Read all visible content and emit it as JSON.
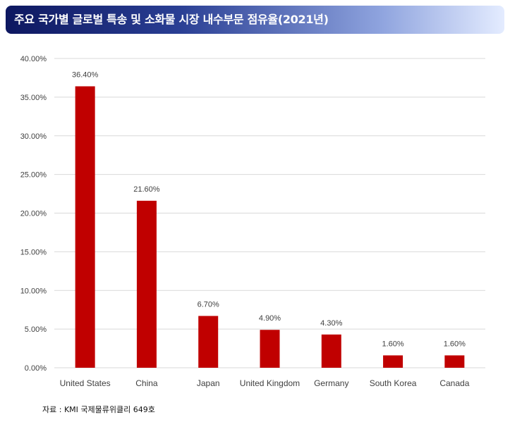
{
  "header": {
    "title": "주요 국가별 글로벌 특송 및 소화물 시장 내수부문 점유율(2021년)"
  },
  "footer": {
    "source": "자료 : KMI 국제물류위클리 649호"
  },
  "colors": {
    "bar": "#c00000",
    "grid": "#d9d9d9",
    "text": "#404040"
  },
  "chart_data": {
    "type": "bar",
    "categories": [
      "United States",
      "China",
      "Japan",
      "United Kingdom",
      "Germany",
      "South Korea",
      "Canada"
    ],
    "values": [
      36.4,
      21.6,
      6.7,
      4.9,
      4.3,
      1.6,
      1.6
    ],
    "data_labels": [
      "36.40%",
      "21.60%",
      "6.70%",
      "4.90%",
      "4.30%",
      "1.60%",
      "1.60%"
    ],
    "yticks": [
      0,
      5,
      10,
      15,
      20,
      25,
      30,
      35,
      40
    ],
    "ytick_labels": [
      "0.00%",
      "5.00%",
      "10.00%",
      "15.00%",
      "20.00%",
      "25.00%",
      "30.00%",
      "35.00%",
      "40.00%"
    ],
    "ylim": [
      0,
      40
    ],
    "grid": true,
    "legend": "none"
  }
}
